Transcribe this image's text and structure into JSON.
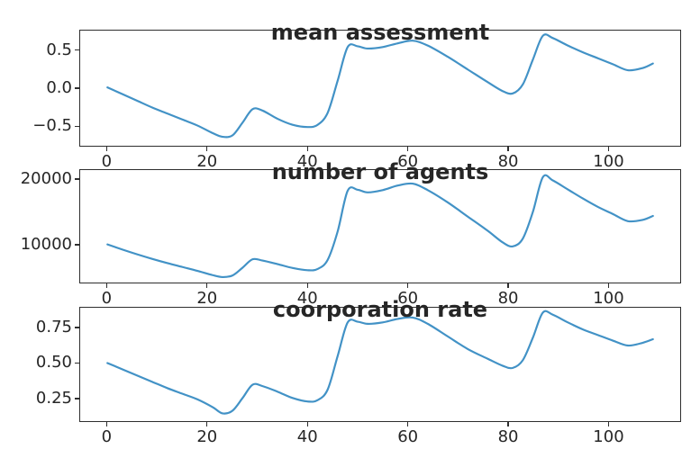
{
  "figure": {
    "background": "#ffffff",
    "line_color": "#4292c6",
    "text_color": "#262626",
    "spine_color": "#2e2e2e"
  },
  "chart_data": [
    {
      "type": "line",
      "title": "mean assessment",
      "xlabel": "",
      "ylabel": "",
      "grid": false,
      "legend": null,
      "xlim": [
        -5.45,
        114.45
      ],
      "ylim": [
        -0.77,
        0.77
      ],
      "xticks": [
        {
          "v": 0,
          "label": "0"
        },
        {
          "v": 20,
          "label": "20"
        },
        {
          "v": 40,
          "label": "40"
        },
        {
          "v": 60,
          "label": "60"
        },
        {
          "v": 80,
          "label": "80"
        },
        {
          "v": 100,
          "label": "100"
        }
      ],
      "yticks": [
        {
          "v": 0.5,
          "label": "0.5"
        },
        {
          "v": 0.0,
          "label": "0.0"
        },
        {
          "v": -0.5,
          "label": "−0.5"
        }
      ],
      "x": [
        0,
        3,
        6,
        9,
        12,
        15,
        18,
        21,
        23,
        25,
        27,
        29,
        31,
        34,
        37,
        40,
        42,
        44,
        46,
        48,
        50,
        52,
        55,
        58,
        61,
        64,
        68,
        72,
        76,
        79,
        81,
        83,
        85,
        87,
        89,
        92,
        95,
        98,
        101,
        104,
        107,
        109
      ],
      "values": [
        0.01,
        -0.08,
        -0.17,
        -0.26,
        -0.34,
        -0.42,
        -0.5,
        -0.6,
        -0.65,
        -0.63,
        -0.46,
        -0.28,
        -0.3,
        -0.41,
        -0.49,
        -0.52,
        -0.49,
        -0.33,
        0.1,
        0.55,
        0.56,
        0.53,
        0.55,
        0.6,
        0.635,
        0.57,
        0.42,
        0.25,
        0.08,
        -0.04,
        -0.07,
        0.05,
        0.38,
        0.7,
        0.67,
        0.57,
        0.48,
        0.4,
        0.32,
        0.24,
        0.27,
        0.33
      ]
    },
    {
      "type": "line",
      "title": "number of agents",
      "xlabel": "",
      "ylabel": "",
      "grid": false,
      "legend": null,
      "xlim": [
        -5.45,
        114.45
      ],
      "ylim": [
        4100,
        21500
      ],
      "xticks": [
        {
          "v": 0,
          "label": "0"
        },
        {
          "v": 20,
          "label": "20"
        },
        {
          "v": 40,
          "label": "40"
        },
        {
          "v": 60,
          "label": "60"
        },
        {
          "v": 80,
          "label": "80"
        },
        {
          "v": 100,
          "label": "100"
        }
      ],
      "yticks": [
        {
          "v": 20000,
          "label": "20000"
        },
        {
          "v": 10000,
          "label": "10000"
        }
      ],
      "x": [
        0,
        3,
        6,
        9,
        12,
        15,
        18,
        21,
        23,
        25,
        27,
        29,
        31,
        34,
        37,
        40,
        42,
        44,
        46,
        48,
        50,
        52,
        55,
        58,
        61,
        64,
        68,
        72,
        76,
        79,
        81,
        83,
        85,
        87,
        89,
        92,
        95,
        98,
        101,
        104,
        107,
        109
      ],
      "values": [
        10000,
        9200,
        8450,
        7750,
        7100,
        6500,
        5900,
        5250,
        4950,
        5200,
        6400,
        7700,
        7500,
        6950,
        6350,
        6000,
        6200,
        7600,
        12000,
        18300,
        18450,
        18050,
        18400,
        19100,
        19400,
        18400,
        16500,
        14300,
        12100,
        10300,
        9700,
        10900,
        15000,
        20400,
        19900,
        18500,
        17100,
        15800,
        14700,
        13600,
        13800,
        14400
      ]
    },
    {
      "type": "line",
      "title": "coorporation rate",
      "xlabel": "",
      "ylabel": "",
      "grid": false,
      "legend": null,
      "xlim": [
        -5.45,
        114.45
      ],
      "ylim": [
        0.085,
        0.895
      ],
      "xticks": [
        {
          "v": 0,
          "label": "0"
        },
        {
          "v": 20,
          "label": "20"
        },
        {
          "v": 40,
          "label": "40"
        },
        {
          "v": 60,
          "label": "60"
        },
        {
          "v": 80,
          "label": "80"
        },
        {
          "v": 100,
          "label": "100"
        }
      ],
      "yticks": [
        {
          "v": 0.75,
          "label": "0.75"
        },
        {
          "v": 0.5,
          "label": "0.50"
        },
        {
          "v": 0.25,
          "label": "0.25"
        }
      ],
      "x": [
        0,
        3,
        6,
        9,
        12,
        15,
        18,
        21,
        23,
        25,
        27,
        29,
        31,
        34,
        37,
        40,
        42,
        44,
        46,
        48,
        50,
        52,
        55,
        58,
        61,
        64,
        68,
        72,
        76,
        79,
        81,
        83,
        85,
        87,
        89,
        92,
        95,
        98,
        101,
        104,
        107,
        109
      ],
      "values": [
        0.5,
        0.455,
        0.41,
        0.365,
        0.32,
        0.28,
        0.24,
        0.185,
        0.14,
        0.16,
        0.25,
        0.345,
        0.335,
        0.295,
        0.25,
        0.225,
        0.235,
        0.31,
        0.55,
        0.79,
        0.795,
        0.78,
        0.79,
        0.815,
        0.825,
        0.78,
        0.69,
        0.6,
        0.53,
        0.48,
        0.465,
        0.52,
        0.68,
        0.86,
        0.845,
        0.79,
        0.74,
        0.7,
        0.66,
        0.625,
        0.645,
        0.67
      ]
    }
  ]
}
